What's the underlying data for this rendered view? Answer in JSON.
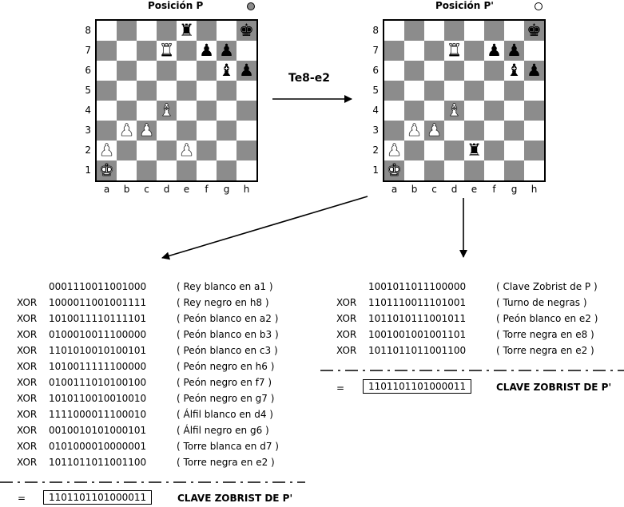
{
  "left_title": "Posición P",
  "right_title": "Posición P'",
  "move": "Te8-e2",
  "ranks": [
    "8",
    "7",
    "6",
    "5",
    "4",
    "3",
    "2",
    "1"
  ],
  "files": [
    "a",
    "b",
    "c",
    "d",
    "e",
    "f",
    "g",
    "h"
  ],
  "board_left": {
    "e8": "bR",
    "h8": "bK",
    "d7": "wR",
    "f7": "bP",
    "g7": "bP",
    "g6": "bB",
    "h6": "bP",
    "d4": "wB",
    "b3": "wP",
    "c3": "wP",
    "a2": "wP",
    "e2": "wP",
    "a1": "wK"
  },
  "board_right": {
    "h8": "bK",
    "d7": "wR",
    "f7": "bP",
    "g7": "bP",
    "g6": "bB",
    "h6": "bP",
    "d4": "wB",
    "b3": "wP",
    "c3": "wP",
    "a2": "wP",
    "e2": "bR",
    "a1": "wK"
  },
  "left_rows": [
    {
      "op": "",
      "bits": "0001110011001000",
      "desc": "( Rey blanco en a1 )"
    },
    {
      "op": "XOR",
      "bits": "1000011001001111",
      "desc": "( Rey negro en h8 )"
    },
    {
      "op": "XOR",
      "bits": "1010011110111101",
      "desc": "( Peón blanco en a2 )"
    },
    {
      "op": "XOR",
      "bits": "0100010011100000",
      "desc": "( Peón blanco en b3 )"
    },
    {
      "op": "XOR",
      "bits": "1101010010100101",
      "desc": "( Peón blanco en c3 )"
    },
    {
      "op": "XOR",
      "bits": "1010011111100000",
      "desc": "( Peón negro en h6 )"
    },
    {
      "op": "XOR",
      "bits": "0100111010100100",
      "desc": "( Peón negro en f7 )"
    },
    {
      "op": "XOR",
      "bits": "1010110010010010",
      "desc": "( Peón negro en g7 )"
    },
    {
      "op": "XOR",
      "bits": "1111000011100010",
      "desc": "( Álfil blanco en d4 )"
    },
    {
      "op": "XOR",
      "bits": "0010010101000101",
      "desc": "( Álfil negro en g6 )"
    },
    {
      "op": "XOR",
      "bits": "0101000010000001",
      "desc": "( Torre blanca en d7 )"
    },
    {
      "op": "XOR",
      "bits": "1011011011001100",
      "desc": "( Torre negra en e2 )"
    }
  ],
  "right_rows": [
    {
      "op": "",
      "bits": "1001011011100000",
      "desc": "( Clave Zobrist de P )"
    },
    {
      "op": "XOR",
      "bits": "1101110011101001",
      "desc": "( Turno de negras )"
    },
    {
      "op": "XOR",
      "bits": "1011010111001011",
      "desc": "( Peón blanco en e2 )"
    },
    {
      "op": "XOR",
      "bits": "1001001001001101",
      "desc": "( Torre negra en e8 )"
    },
    {
      "op": "XOR",
      "bits": "1011011011001100",
      "desc": "( Torre negra en e2 )"
    }
  ],
  "equals": "=",
  "result_key": "1101101101000011",
  "result_label": "CLAVE ZOBRIST DE P'"
}
